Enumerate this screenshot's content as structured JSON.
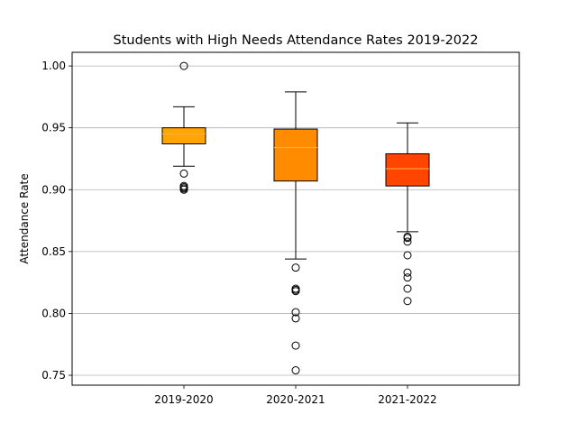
{
  "chart_data": {
    "type": "box",
    "title": "Students with High Needs Attendance Rates 2019-2022",
    "xlabel": "",
    "ylabel": "Attendance Rate",
    "ylim": [
      0.742,
      1.011
    ],
    "yticks": [
      0.75,
      0.8,
      0.85,
      0.9,
      0.95,
      1.0
    ],
    "ytick_labels": [
      "0.75",
      "0.80",
      "0.85",
      "0.90",
      "0.95",
      "1.00"
    ],
    "grid": "horizontal",
    "categories": [
      "2019-2020",
      "2020-2021",
      "2021-2022"
    ],
    "boxes": [
      {
        "category": "2019-2020",
        "whisker_low": 0.919,
        "q1": 0.937,
        "median": 0.945,
        "q3": 0.95,
        "whisker_high": 0.967,
        "outliers": [
          1.0,
          0.913,
          0.903,
          0.902,
          0.901,
          0.9
        ],
        "color": "#FFA500"
      },
      {
        "category": "2020-2021",
        "whisker_low": 0.844,
        "q1": 0.907,
        "median": 0.934,
        "q3": 0.949,
        "whisker_high": 0.979,
        "outliers": [
          0.837,
          0.82,
          0.819,
          0.818,
          0.801,
          0.796,
          0.774,
          0.754
        ],
        "color": "#FF8C00"
      },
      {
        "category": "2021-2022",
        "whisker_low": 0.866,
        "q1": 0.903,
        "median": 0.917,
        "q3": 0.929,
        "whisker_high": 0.954,
        "outliers": [
          0.862,
          0.861,
          0.858,
          0.847,
          0.833,
          0.829,
          0.82,
          0.81
        ],
        "color": "#FF4500"
      }
    ],
    "colors": {
      "median": "#FFB347",
      "grid": "#b0b0b0",
      "axis": "#000000"
    }
  }
}
